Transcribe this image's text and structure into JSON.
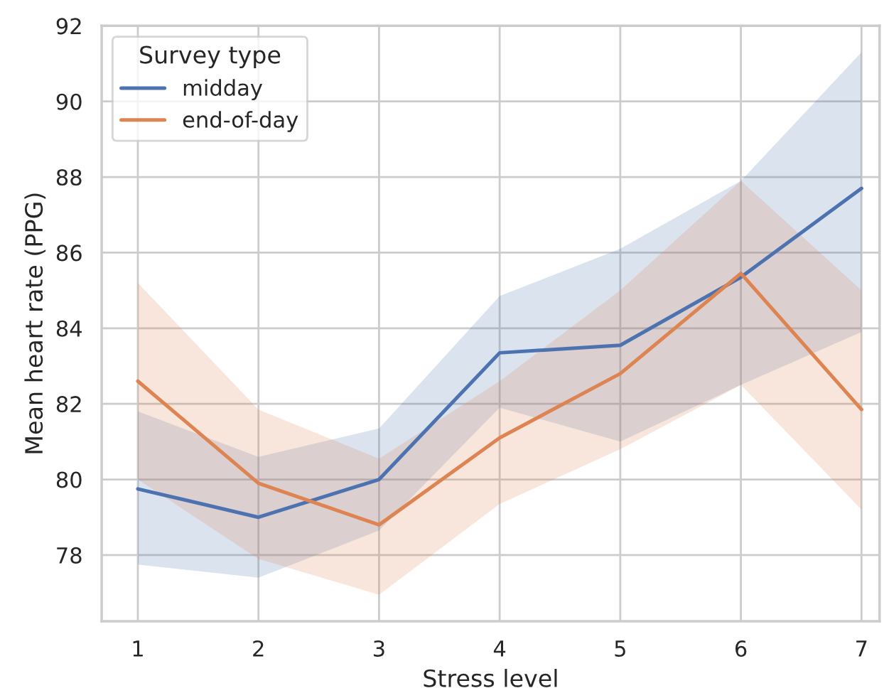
{
  "chart_data": {
    "type": "line",
    "xlabel": "Stress level",
    "ylabel": "Mean heart rate (PPG)",
    "legend_title": "Survey type",
    "x": [
      1,
      2,
      3,
      4,
      5,
      6,
      7
    ],
    "series": [
      {
        "name": "midday",
        "color": "#4c72b0",
        "values": [
          79.75,
          79.0,
          80.0,
          83.35,
          83.55,
          85.35,
          87.7
        ],
        "lower": [
          77.75,
          77.4,
          78.65,
          81.9,
          81.0,
          82.5,
          83.9
        ],
        "upper": [
          81.8,
          80.6,
          81.35,
          84.85,
          86.1,
          87.9,
          91.3
        ]
      },
      {
        "name": "end-of-day",
        "color": "#dd8452",
        "values": [
          82.6,
          79.9,
          78.8,
          81.1,
          82.8,
          85.45,
          81.85
        ],
        "lower": [
          80.0,
          77.9,
          76.95,
          79.35,
          80.8,
          82.5,
          79.2
        ],
        "upper": [
          85.2,
          81.85,
          80.55,
          82.6,
          85.0,
          87.9,
          85.0
        ]
      }
    ],
    "xlim": [
      0.7,
      7.15
    ],
    "ylim": [
      76.25,
      92
    ],
    "xticks": [
      1,
      2,
      3,
      4,
      5,
      6,
      7
    ],
    "yticks": [
      78,
      80,
      82,
      84,
      86,
      88,
      90,
      92
    ],
    "grid": true,
    "legend": "top left",
    "marker": "none",
    "line_style": "solid"
  }
}
